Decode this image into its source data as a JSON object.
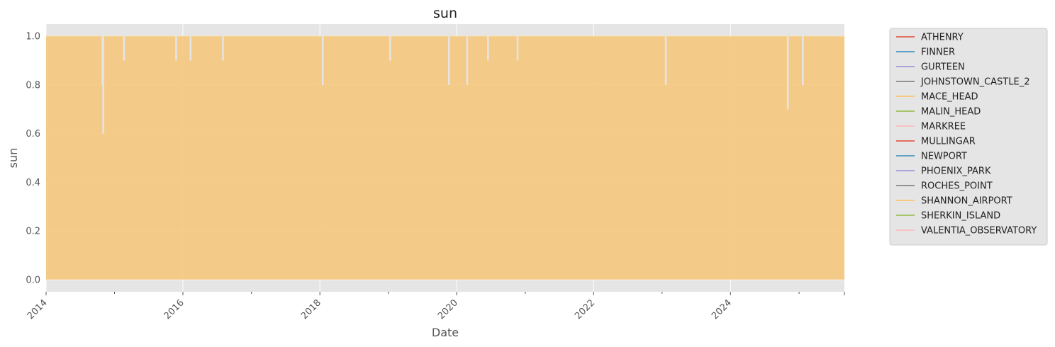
{
  "chart_data": {
    "type": "area",
    "title": "sun",
    "xlabel": "Date",
    "ylabel": "sun",
    "x_ticks": [
      "2014",
      "2016",
      "2018",
      "2020",
      "2022",
      "2024"
    ],
    "y_ticks": [
      "0.0",
      "0.2",
      "0.4",
      "0.6",
      "0.8",
      "1.0"
    ],
    "xlim": [
      "2014-01-01",
      "2025-08-31"
    ],
    "ylim": [
      -0.05,
      1.05
    ],
    "grid": true,
    "legend_position": "outside right",
    "baseline_value": 1.0,
    "dips": [
      {
        "date": "2014-11-01",
        "value": 0.6
      },
      {
        "date": "2014-10-28",
        "value": 0.8
      },
      {
        "date": "2015-02-20",
        "value": 0.9
      },
      {
        "date": "2015-11-25",
        "value": 0.9
      },
      {
        "date": "2016-02-10",
        "value": 0.9
      },
      {
        "date": "2016-08-01",
        "value": 0.9
      },
      {
        "date": "2018-01-15",
        "value": 0.8
      },
      {
        "date": "2019-01-10",
        "value": 0.9
      },
      {
        "date": "2019-11-20",
        "value": 0.8
      },
      {
        "date": "2020-02-25",
        "value": 0.8
      },
      {
        "date": "2020-06-15",
        "value": 0.9
      },
      {
        "date": "2020-11-20",
        "value": 0.9
      },
      {
        "date": "2023-01-20",
        "value": 0.8
      },
      {
        "date": "2024-11-01",
        "value": 0.7
      },
      {
        "date": "2025-01-20",
        "value": 0.8
      }
    ],
    "series": [
      {
        "name": "ATHENRY",
        "color": "#E24A33"
      },
      {
        "name": "FINNER",
        "color": "#348ABD"
      },
      {
        "name": "GURTEEN",
        "color": "#988ED5"
      },
      {
        "name": "JOHNSTOWN_CASTLE_2",
        "color": "#777777"
      },
      {
        "name": "MACE_HEAD",
        "color": "#FBC15E"
      },
      {
        "name": "MALIN_HEAD",
        "color": "#8EBA42"
      },
      {
        "name": "MARKREE",
        "color": "#FFB5B8"
      },
      {
        "name": "MULLINGAR",
        "color": "#E24A33"
      },
      {
        "name": "NEWPORT",
        "color": "#348ABD"
      },
      {
        "name": "PHOENIX_PARK",
        "color": "#988ED5"
      },
      {
        "name": "ROCHES_POINT",
        "color": "#777777"
      },
      {
        "name": "SHANNON_AIRPORT",
        "color": "#FBC15E"
      },
      {
        "name": "SHERKIN_ISLAND",
        "color": "#8EBA42"
      },
      {
        "name": "VALENTIA_OBSERVATORY",
        "color": "#FFB5B8"
      }
    ]
  }
}
